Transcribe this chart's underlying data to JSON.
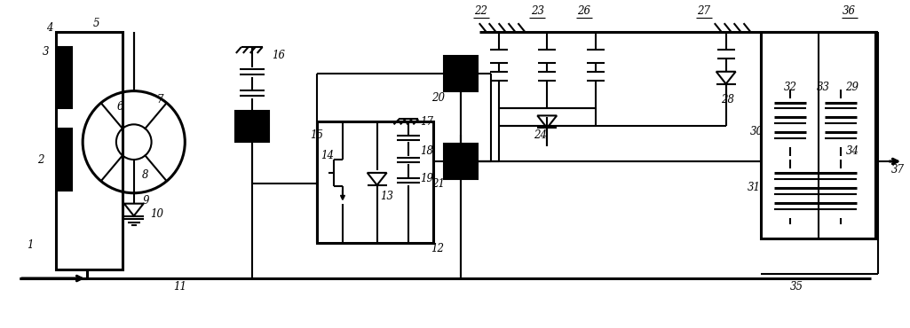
{
  "figsize": [
    10.25,
    3.7
  ],
  "dpi": 100,
  "lw": 1.5,
  "lw_thick": 2.2
}
